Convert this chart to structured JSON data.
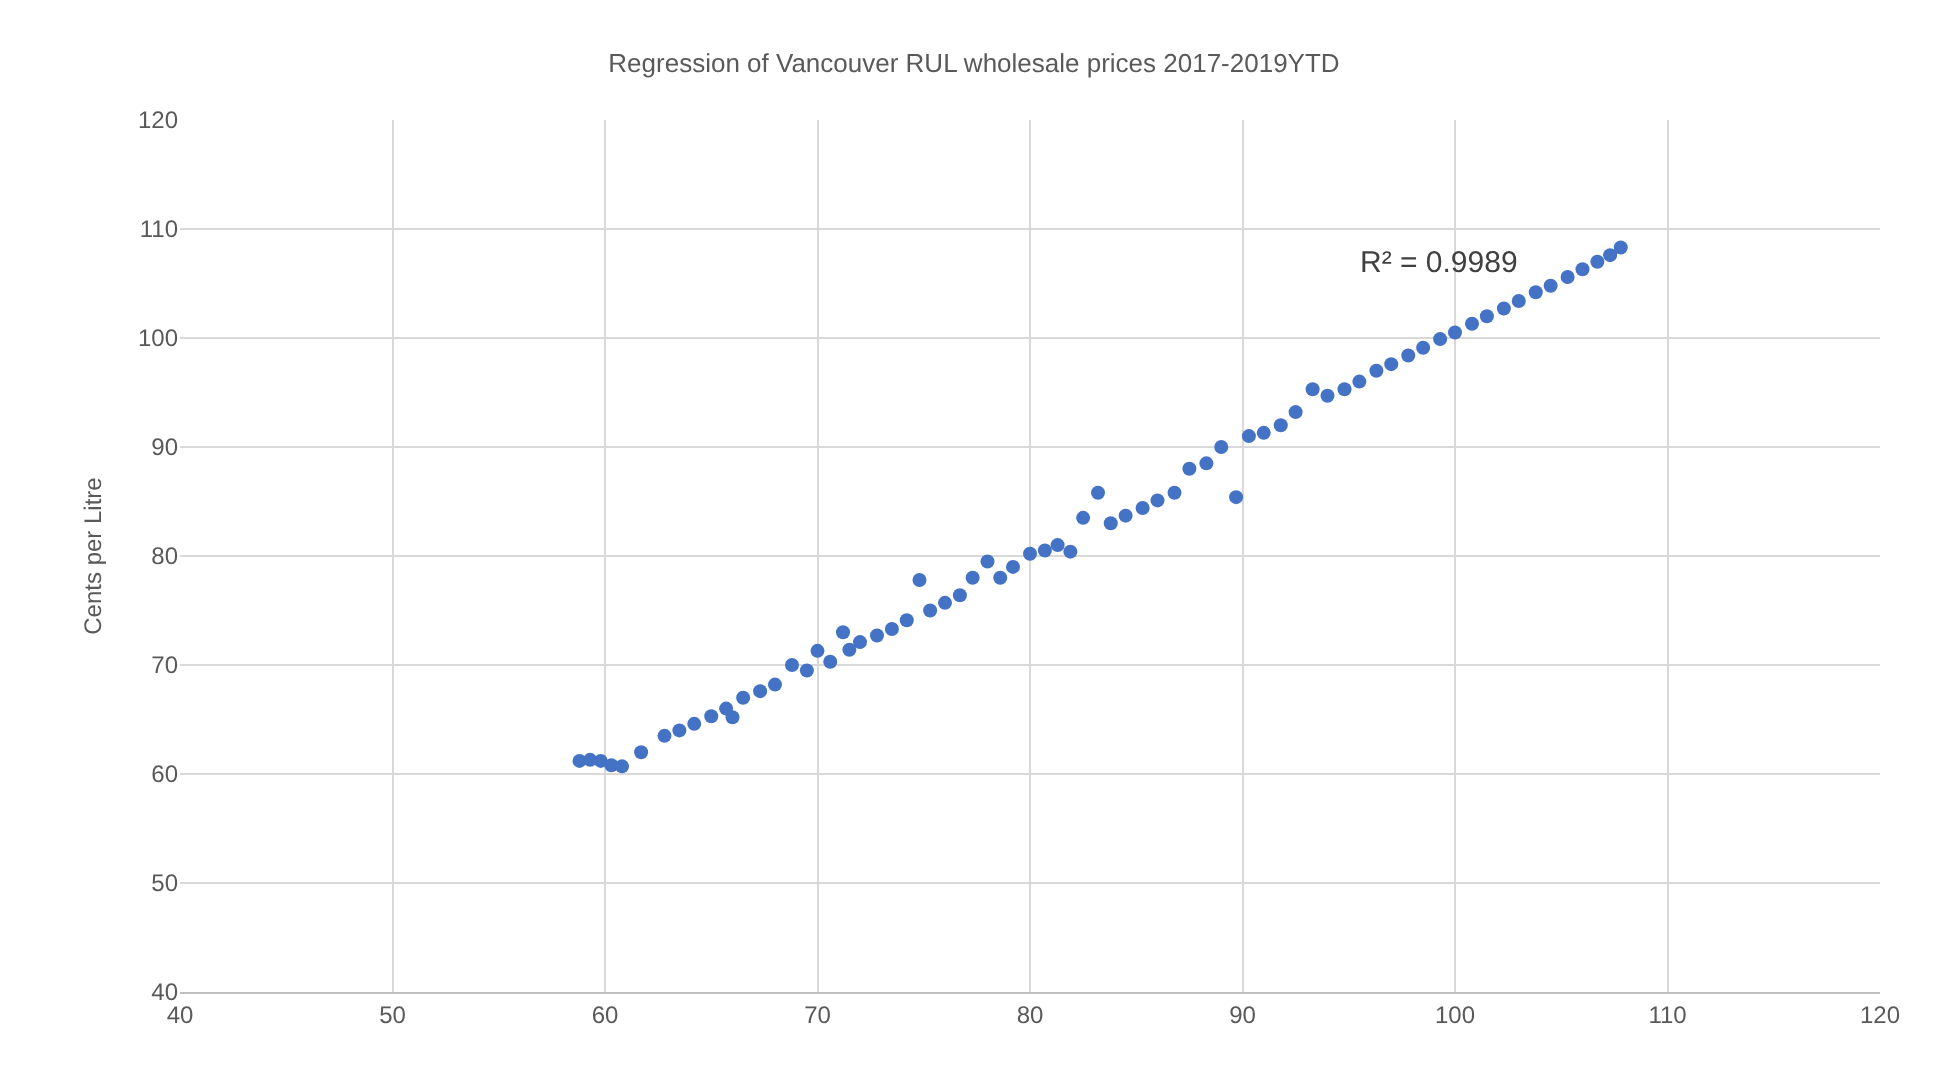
{
  "chart_data": {
    "type": "scatter",
    "title": "Regression of Vancouver RUL wholesale prices 2017-2019YTD",
    "ylabel": "Cents per Litre",
    "annotations": [
      "R² = 0.9989"
    ],
    "x": [
      58.8,
      59.3,
      59.8,
      60.3,
      60.8,
      61.7,
      62.8,
      63.5,
      64.2,
      65.0,
      65.7,
      66.0,
      66.5,
      67.3,
      68.0,
      68.8,
      69.5,
      70.0,
      70.6,
      71.2,
      71.5,
      72.0,
      72.8,
      73.5,
      74.2,
      74.8,
      75.3,
      76.0,
      76.7,
      77.3,
      78.0,
      78.6,
      79.2,
      80.0,
      80.7,
      81.3,
      81.9,
      82.5,
      83.2,
      83.8,
      84.5,
      85.3,
      86.0,
      86.8,
      87.5,
      88.3,
      89.0,
      89.7,
      90.3,
      91.0,
      91.8,
      92.5,
      93.3,
      94.0,
      94.8,
      95.5,
      96.3,
      97.0,
      97.8,
      98.5,
      99.3,
      100.0,
      100.8,
      101.5,
      102.3,
      103.0,
      103.8,
      104.5,
      105.3,
      106.0,
      106.7,
      107.3,
      107.8
    ],
    "series": [
      {
        "color": "#4472c4",
        "values": [
          61.2,
          61.3,
          61.2,
          60.8,
          60.7,
          62.0,
          63.5,
          64.0,
          64.6,
          65.3,
          66.0,
          65.2,
          67.0,
          67.6,
          68.2,
          70.0,
          69.5,
          71.3,
          70.3,
          73.0,
          71.4,
          72.1,
          72.7,
          73.3,
          74.1,
          77.8,
          75.0,
          75.7,
          76.4,
          78.0,
          79.5,
          78.0,
          79.0,
          80.2,
          80.5,
          81.0,
          80.4,
          83.5,
          85.8,
          83.0,
          83.7,
          84.4,
          85.1,
          85.8,
          88.0,
          88.5,
          90.0,
          85.4,
          91.0,
          91.3,
          92.0,
          93.2,
          95.3,
          94.7,
          95.3,
          96.0,
          97.0,
          97.6,
          98.4,
          99.1,
          99.9,
          100.5,
          101.3,
          102.0,
          102.7,
          103.4,
          104.2,
          104.8,
          105.6,
          106.3,
          107.0,
          107.6,
          108.3
        ]
      }
    ],
    "xlim": [
      40,
      120
    ],
    "xticks": [
      40,
      50,
      60,
      70,
      80,
      90,
      100,
      110,
      120
    ],
    "ylim": [
      40,
      120
    ],
    "yticks": [
      40,
      50,
      60,
      70,
      80,
      90,
      100,
      110,
      120
    ],
    "grid": true,
    "marker": "circle"
  }
}
